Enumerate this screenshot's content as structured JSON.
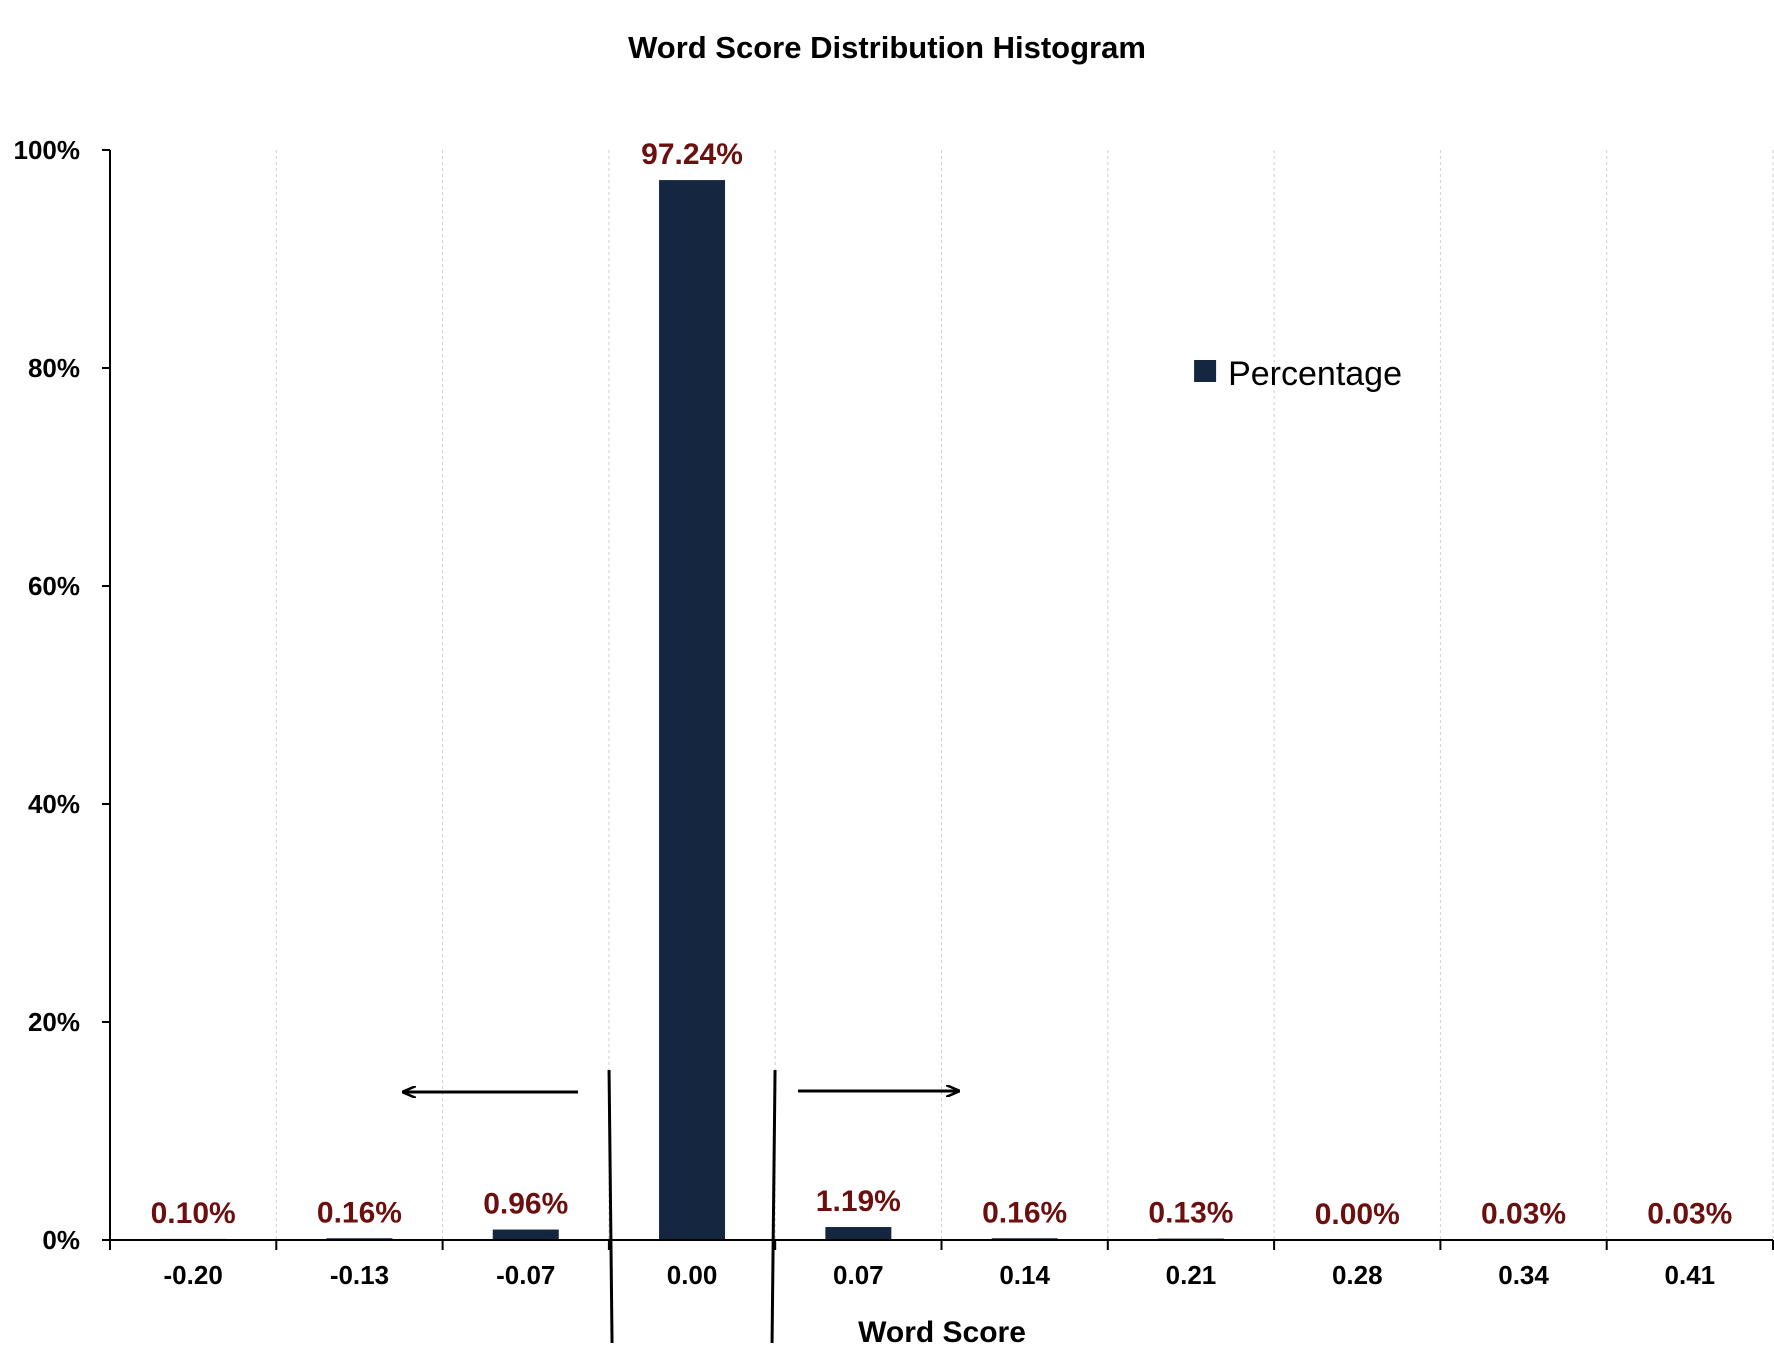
{
  "chart_data": {
    "type": "bar",
    "title": "Word Score Distribution Histogram",
    "xlabel": "Word Score",
    "ylabel": "",
    "categories": [
      "-0.20",
      "-0.13",
      "-0.07",
      "0.00",
      "0.07",
      "0.14",
      "0.21",
      "0.28",
      "0.34",
      "0.41"
    ],
    "series": [
      {
        "name": "Percentage",
        "values": [
          0.1,
          0.16,
          0.96,
          97.24,
          1.19,
          0.16,
          0.13,
          0.0,
          0.03,
          0.03
        ],
        "labels": [
          "0.10%",
          "0.16%",
          "0.96%",
          "97.24%",
          "1.19%",
          "0.16%",
          "0.13%",
          "0.00%",
          "0.03%",
          "0.03%"
        ]
      }
    ],
    "ylim": [
      0,
      100
    ],
    "yticks": [
      "0%",
      "20%",
      "40%",
      "60%",
      "80%",
      "100%"
    ],
    "ytick_values": [
      0,
      20,
      40,
      60,
      80,
      100
    ],
    "grid": "vertical dashed",
    "legend_position": "upper-right",
    "colors": {
      "bar": "#142640",
      "data_label": "#6b0f0f"
    },
    "annotations": [
      "left arrow",
      "right arrow",
      "two vertical divider lines around 0.00"
    ]
  }
}
